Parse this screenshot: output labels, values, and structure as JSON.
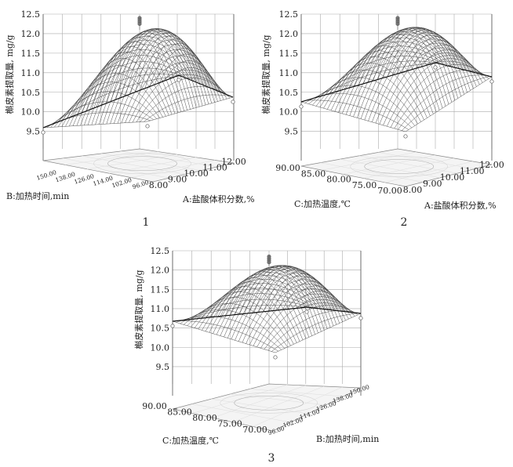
{
  "panels": [
    {
      "number": "1",
      "zlabel": "槲皮素提取量, mg/g",
      "z_ticks": [
        "12.5",
        "12.0",
        "11.5",
        "11.0",
        "10.5",
        "10.0",
        "9.5"
      ],
      "x_label": "B:加热时间,min",
      "x_ticks": [
        "150.00",
        "138.00",
        "126.00",
        "114.00",
        "102.00",
        "96.00"
      ],
      "y_label": "A:盐酸体积分数,%",
      "y_ticks": [
        "8.00",
        "9.00",
        "10.00",
        "11.00",
        "12.00"
      ]
    },
    {
      "number": "2",
      "zlabel": "槲皮素提取量, mg/g",
      "z_ticks": [
        "12.5",
        "12.0",
        "11.5",
        "11.0",
        "10.5",
        "10.0",
        "9.5"
      ],
      "x_label": "C:加热温度,℃",
      "x_ticks": [
        "90.00",
        "85.00",
        "80.00",
        "75.00",
        "70.00"
      ],
      "y_label": "A:盐酸体积分数,%",
      "y_ticks": [
        "8.00",
        "9.00",
        "10.00",
        "11.00",
        "12.00"
      ]
    },
    {
      "number": "3",
      "zlabel": "槲皮素提取量, mg/g",
      "z_ticks": [
        "12.5",
        "12.0",
        "11.5",
        "11.0",
        "10.5",
        "10.0",
        "9.5"
      ],
      "x_label": "C:加热温度,℃",
      "x_ticks": [
        "90.00",
        "85.00",
        "80.00",
        "75.00",
        "70.00"
      ],
      "y_label": "B:加热时间,min",
      "y_ticks": [
        "96.00",
        "102.00",
        "114.00",
        "126.00",
        "138.00",
        "150.00"
      ]
    }
  ],
  "chart_data": [
    {
      "type": "surface",
      "zlabel": "槲皮素提取量, mg/g",
      "zlim": [
        9.5,
        12.5
      ],
      "x_factor": "B:加热时间,min",
      "xlim": [
        96,
        150
      ],
      "y_factor": "A:盐酸体积分数,%",
      "ylim": [
        8,
        12
      ],
      "center_value": 12.05,
      "corner_values": {
        "front_left": 9.6,
        "front_middle": 9.8,
        "right": 10.3,
        "back": 10.6
      },
      "design_points_max": [
        12.4,
        12.35,
        12.3,
        12.25
      ]
    },
    {
      "type": "surface",
      "zlabel": "槲皮素提取量, mg/g",
      "zlim": [
        9.5,
        12.5
      ],
      "x_factor": "C:加热温度,℃",
      "xlim": [
        70,
        90
      ],
      "y_factor": "A:盐酸体积分数,%",
      "ylim": [
        8,
        12
      ],
      "center_value": 12.1,
      "corner_values": {
        "front_left": 10.2,
        "front_middle": 9.7,
        "right": 10.8,
        "back": 10.9
      },
      "design_points_max": [
        12.4,
        12.35,
        12.3,
        12.25
      ]
    },
    {
      "type": "surface",
      "zlabel": "槲皮素提取量, mg/g",
      "zlim": [
        9.5,
        12.5
      ],
      "x_factor": "C:加热温度,℃",
      "xlim": [
        70,
        90
      ],
      "y_factor": "B:加热时间,min",
      "ylim": [
        96,
        150
      ],
      "center_value": 12.1,
      "corner_values": {
        "front_left": 10.7,
        "front_middle": 10.0,
        "right": 10.8,
        "back": 11.0
      },
      "design_points_max": [
        12.35,
        12.3,
        12.25,
        12.2
      ]
    }
  ]
}
